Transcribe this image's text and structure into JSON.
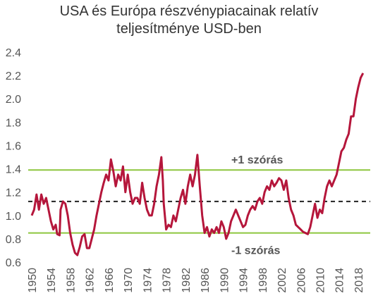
{
  "chart_data": {
    "type": "line",
    "title": "USA és Európa részvénypiacainak relatív teljesítménye USD-ben",
    "color": "#b5163b",
    "x": [
      1950,
      1950.5,
      1951,
      1951.5,
      1952,
      1952.5,
      1953,
      1953.5,
      1954,
      1954.5,
      1955,
      1955.3,
      1955.8,
      1956,
      1956.5,
      1957,
      1957.5,
      1958,
      1958.5,
      1959,
      1959.5,
      1960,
      1960.5,
      1961,
      1961.5,
      1962,
      1962.5,
      1963,
      1963.5,
      1964,
      1964.5,
      1965,
      1965.5,
      1966,
      1966.5,
      1967,
      1967.5,
      1968,
      1968.5,
      1969,
      1969.5,
      1970,
      1970.5,
      1971,
      1971.5,
      1972,
      1972.5,
      1973,
      1973.5,
      1974,
      1974.5,
      1975,
      1975.5,
      1976,
      1976.5,
      1977,
      1977.3,
      1977.5,
      1978,
      1978.5,
      1979,
      1979.5,
      1980,
      1980.5,
      1981,
      1981.5,
      1982,
      1982.5,
      1983,
      1983.5,
      1984,
      1984.5,
      1985,
      1985.5,
      1986,
      1986.5,
      1987,
      1987.5,
      1988,
      1988.5,
      1989,
      1989.5,
      1990,
      1990.5,
      1991,
      1991.5,
      1992,
      1992.5,
      1993,
      1993.5,
      1994,
      1994.5,
      1995,
      1995.5,
      1996,
      1996.5,
      1997,
      1997.5,
      1998,
      1998.5,
      1999,
      1999.5,
      2000,
      2000.5,
      2001,
      2001.5,
      2002,
      2002.5,
      2003,
      2003.5,
      2004,
      2004.5,
      2005,
      2005.5,
      2006,
      2006.5,
      2007,
      2007.5,
      2008,
      2008.5,
      2009,
      2009.5,
      2010,
      2010.5,
      2011,
      2011.5,
      2012,
      2012.5,
      2013,
      2013.5,
      2014,
      2014.5,
      2015,
      2015.5,
      2016,
      2016.5,
      2017,
      2017.5,
      2018,
      2018.5,
      2019
    ],
    "values": [
      1.0,
      1.05,
      1.18,
      1.05,
      1.18,
      1.1,
      1.15,
      1.05,
      0.95,
      0.88,
      0.92,
      0.84,
      0.83,
      1.05,
      1.12,
      1.1,
      1.0,
      0.85,
      0.75,
      0.68,
      0.66,
      0.73,
      0.82,
      0.84,
      0.72,
      0.72,
      0.8,
      0.88,
      1.0,
      1.1,
      1.2,
      1.28,
      1.35,
      1.3,
      1.48,
      1.38,
      1.25,
      1.35,
      1.3,
      1.42,
      1.2,
      1.35,
      1.2,
      1.1,
      1.15,
      1.15,
      1.1,
      1.28,
      1.15,
      1.05,
      1.0,
      1.0,
      1.1,
      1.25,
      1.35,
      1.5,
      1.3,
      1.1,
      0.88,
      0.92,
      0.9,
      1.0,
      0.95,
      1.05,
      1.15,
      1.22,
      1.1,
      1.25,
      1.35,
      1.25,
      1.35,
      1.52,
      1.25,
      1.0,
      0.85,
      0.9,
      0.82,
      0.88,
      0.85,
      0.9,
      0.85,
      0.95,
      0.9,
      0.8,
      0.85,
      0.95,
      1.0,
      1.05,
      1.0,
      0.95,
      0.9,
      0.92,
      1.0,
      1.05,
      1.08,
      1.05,
      1.12,
      1.15,
      1.1,
      1.2,
      1.25,
      1.22,
      1.3,
      1.25,
      1.28,
      1.32,
      1.3,
      1.22,
      1.3,
      1.15,
      1.05,
      1.0,
      0.92,
      0.9,
      0.88,
      0.86,
      0.85,
      0.84,
      0.9,
      1.0,
      1.1,
      0.98,
      1.05,
      1.02,
      1.15,
      1.25,
      1.3,
      1.25,
      1.3,
      1.35,
      1.45,
      1.55,
      1.58,
      1.65,
      1.7,
      1.85,
      1.85,
      2.0,
      2.1,
      2.18,
      2.22
    ],
    "xlim": [
      1950,
      2020.5
    ],
    "xticks": [
      1950,
      1954,
      1958,
      1962,
      1966,
      1970,
      1974,
      1978,
      1982,
      1986,
      1990,
      1994,
      1998,
      2002,
      2006,
      2010,
      2014,
      2018
    ],
    "ylim": [
      0.6,
      2.4
    ],
    "yticks": [
      0.6,
      0.8,
      {
        "value": 1,
        "label": "1.0"
      },
      1.2,
      1.4,
      1.6,
      1.8,
      {
        "value": 2,
        "label": "2.0"
      },
      2.2,
      2.4
    ],
    "reference_lines": [
      {
        "value": 1.39,
        "color": "#8dc63f",
        "dashed": false,
        "label": "+1 szórás"
      },
      {
        "value": 1.12,
        "color": "#222222",
        "dashed": true
      },
      {
        "value": 0.85,
        "color": "#8dc63f",
        "dashed": false,
        "label": "-1 szórás"
      }
    ]
  }
}
